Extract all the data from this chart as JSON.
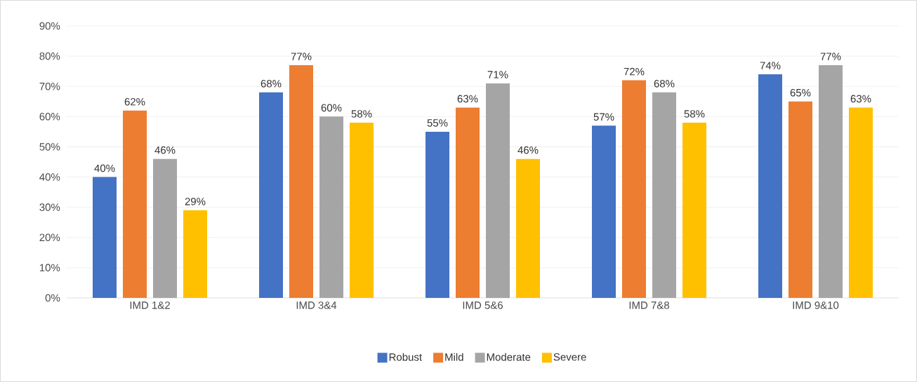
{
  "chart_data": {
    "type": "bar",
    "categories": [
      "IMD 1&2",
      "IMD 3&4",
      "IMD 5&6",
      "IMD 7&8",
      "IMD 9&10"
    ],
    "series": [
      {
        "name": "Robust",
        "color": "#4472c4",
        "values": [
          40,
          68,
          55,
          57,
          74
        ],
        "value_labels": [
          "40%",
          "68%",
          "55%",
          "57%",
          "74%"
        ]
      },
      {
        "name": "Mild",
        "color": "#ed7d31",
        "values": [
          62,
          77,
          63,
          72,
          65
        ],
        "value_labels": [
          "62%",
          "77%",
          "63%",
          "72%",
          "65%"
        ]
      },
      {
        "name": "Moderate",
        "color": "#a5a5a5",
        "values": [
          46,
          60,
          71,
          68,
          77
        ],
        "value_labels": [
          "46%",
          "60%",
          "71%",
          "68%",
          "77%"
        ]
      },
      {
        "name": "Severe",
        "color": "#ffc000",
        "values": [
          29,
          58,
          46,
          58,
          63
        ],
        "value_labels": [
          "29%",
          "58%",
          "46%",
          "58%",
          "63%"
        ]
      }
    ],
    "ylim": [
      0,
      90
    ],
    "yticks": [
      {
        "value": 0,
        "label": "0%"
      },
      {
        "value": 10,
        "label": "10%"
      },
      {
        "value": 20,
        "label": "20%"
      },
      {
        "value": 30,
        "label": "30%"
      },
      {
        "value": 40,
        "label": "40%"
      },
      {
        "value": 50,
        "label": "50%"
      },
      {
        "value": 60,
        "label": "60%"
      },
      {
        "value": 70,
        "label": "70%"
      },
      {
        "value": 80,
        "label": "80%"
      },
      {
        "value": 90,
        "label": "90%"
      }
    ],
    "grid": "y",
    "legend": "bottom"
  }
}
